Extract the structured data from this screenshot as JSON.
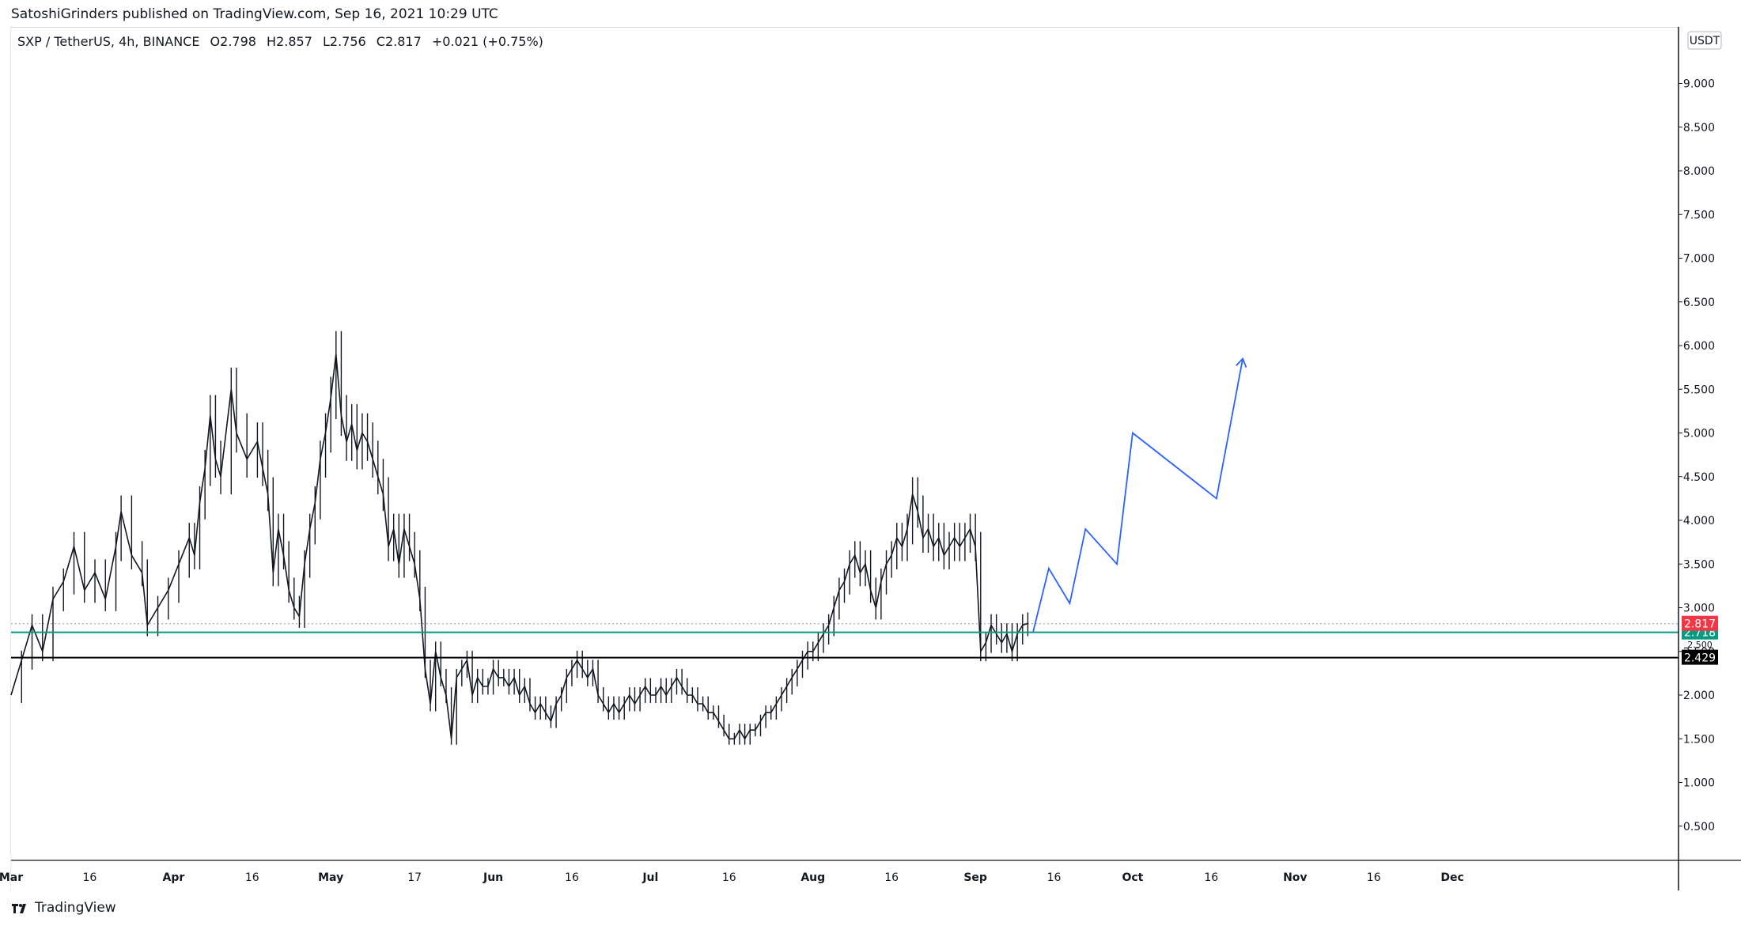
{
  "header": {
    "published_line": "SatoshiGrinders published on TradingView.com, Sep 16, 2021 10:29 UTC"
  },
  "legend": {
    "symbol": "SXP / TetherUS, 4h, BINANCE",
    "open": "O2.798",
    "high": "H2.857",
    "low": "L2.756",
    "close": "C2.817",
    "change": "+0.021 (+0.75%)"
  },
  "footer": {
    "brand": "TradingView"
  },
  "colors": {
    "candle": "#131722",
    "projection": "#2962ff",
    "support_teal": "#089981",
    "support_black": "#000000",
    "last_price": "#f23645",
    "grid_dotted": "#9598a1"
  },
  "chart_data": {
    "type": "line",
    "title": "SXP / TetherUS, 4h, BINANCE",
    "currency": "USDT",
    "ylim": [
      0,
      9.5
    ],
    "y_ticks": [
      "9.000",
      "8.500",
      "8.000",
      "7.500",
      "7.000",
      "6.500",
      "6.000",
      "5.500",
      "5.000",
      "4.500",
      "4.000",
      "3.500",
      "3.000",
      "2.500",
      "2.000",
      "1.500",
      "1.000",
      "0.500"
    ],
    "x_ticks": [
      {
        "label": "Mar",
        "day": 0,
        "month": true
      },
      {
        "label": "16",
        "day": 15,
        "month": false
      },
      {
        "label": "Apr",
        "day": 31,
        "month": true
      },
      {
        "label": "16",
        "day": 46,
        "month": false
      },
      {
        "label": "May",
        "day": 61,
        "month": true
      },
      {
        "label": "17",
        "day": 77,
        "month": false
      },
      {
        "label": "Jun",
        "day": 92,
        "month": true
      },
      {
        "label": "16",
        "day": 107,
        "month": false
      },
      {
        "label": "Jul",
        "day": 122,
        "month": true
      },
      {
        "label": "16",
        "day": 137,
        "month": false
      },
      {
        "label": "Aug",
        "day": 153,
        "month": true
      },
      {
        "label": "16",
        "day": 168,
        "month": false
      },
      {
        "label": "Sep",
        "day": 184,
        "month": true
      },
      {
        "label": "16",
        "day": 199,
        "month": false
      },
      {
        "label": "Oct",
        "day": 214,
        "month": true
      },
      {
        "label": "16",
        "day": 229,
        "month": false
      },
      {
        "label": "Nov",
        "day": 245,
        "month": true
      },
      {
        "label": "16",
        "day": 260,
        "month": false
      },
      {
        "label": "Dec",
        "day": 275,
        "month": true
      }
    ],
    "x_range_days": [
      0,
      318
    ],
    "price_series": {
      "name": "SXP 4h close (approx.)",
      "points": [
        [
          0,
          2.0
        ],
        [
          2,
          2.4
        ],
        [
          4,
          2.8
        ],
        [
          6,
          2.5
        ],
        [
          8,
          3.1
        ],
        [
          10,
          3.3
        ],
        [
          12,
          3.7
        ],
        [
          14,
          3.2
        ],
        [
          16,
          3.4
        ],
        [
          18,
          3.1
        ],
        [
          20,
          3.7
        ],
        [
          21,
          4.1
        ],
        [
          23,
          3.6
        ],
        [
          25,
          3.4
        ],
        [
          26,
          2.8
        ],
        [
          28,
          3.0
        ],
        [
          30,
          3.2
        ],
        [
          32,
          3.5
        ],
        [
          34,
          3.8
        ],
        [
          35,
          3.6
        ],
        [
          36,
          4.2
        ],
        [
          37,
          4.6
        ],
        [
          38,
          5.2
        ],
        [
          39,
          4.7
        ],
        [
          40,
          4.5
        ],
        [
          42,
          5.5
        ],
        [
          43,
          5.0
        ],
        [
          45,
          4.7
        ],
        [
          47,
          4.9
        ],
        [
          48,
          4.6
        ],
        [
          49,
          4.3
        ],
        [
          50,
          3.4
        ],
        [
          51,
          3.9
        ],
        [
          52,
          3.6
        ],
        [
          53,
          3.2
        ],
        [
          54,
          3.0
        ],
        [
          55,
          2.9
        ],
        [
          56,
          3.5
        ],
        [
          57,
          3.9
        ],
        [
          58,
          4.2
        ],
        [
          59,
          4.7
        ],
        [
          60,
          5.0
        ],
        [
          61,
          5.4
        ],
        [
          62,
          5.9
        ],
        [
          63,
          5.2
        ],
        [
          64,
          4.9
        ],
        [
          65,
          5.1
        ],
        [
          66,
          4.8
        ],
        [
          67,
          5.0
        ],
        [
          68,
          4.9
        ],
        [
          69,
          4.7
        ],
        [
          70,
          4.5
        ],
        [
          71,
          4.3
        ],
        [
          72,
          3.7
        ],
        [
          73,
          3.9
        ],
        [
          74,
          3.5
        ],
        [
          75,
          3.9
        ],
        [
          76,
          3.7
        ],
        [
          77,
          3.5
        ],
        [
          78,
          3.1
        ],
        [
          79,
          2.3
        ],
        [
          80,
          1.9
        ],
        [
          81,
          2.5
        ],
        [
          82,
          2.2
        ],
        [
          83,
          2.0
        ],
        [
          84,
          1.5
        ],
        [
          85,
          2.2
        ],
        [
          86,
          2.3
        ],
        [
          87,
          2.4
        ],
        [
          88,
          2.0
        ],
        [
          89,
          2.2
        ],
        [
          90,
          2.1
        ],
        [
          91,
          2.1
        ],
        [
          92,
          2.3
        ],
        [
          93,
          2.2
        ],
        [
          94,
          2.2
        ],
        [
          95,
          2.1
        ],
        [
          96,
          2.2
        ],
        [
          97,
          2.0
        ],
        [
          98,
          2.1
        ],
        [
          99,
          1.9
        ],
        [
          100,
          1.8
        ],
        [
          101,
          1.9
        ],
        [
          102,
          1.8
        ],
        [
          103,
          1.7
        ],
        [
          104,
          1.9
        ],
        [
          105,
          2.0
        ],
        [
          106,
          2.2
        ],
        [
          107,
          2.3
        ],
        [
          108,
          2.4
        ],
        [
          109,
          2.3
        ],
        [
          110,
          2.2
        ],
        [
          111,
          2.3
        ],
        [
          112,
          2.0
        ],
        [
          113,
          1.9
        ],
        [
          114,
          1.8
        ],
        [
          115,
          1.9
        ],
        [
          116,
          1.8
        ],
        [
          117,
          1.9
        ],
        [
          118,
          2.0
        ],
        [
          119,
          1.9
        ],
        [
          120,
          2.0
        ],
        [
          121,
          2.1
        ],
        [
          122,
          2.0
        ],
        [
          123,
          2.0
        ],
        [
          124,
          2.1
        ],
        [
          125,
          2.0
        ],
        [
          126,
          2.1
        ],
        [
          127,
          2.2
        ],
        [
          128,
          2.1
        ],
        [
          129,
          2.0
        ],
        [
          130,
          2.0
        ],
        [
          131,
          1.9
        ],
        [
          132,
          1.9
        ],
        [
          133,
          1.8
        ],
        [
          134,
          1.8
        ],
        [
          135,
          1.7
        ],
        [
          136,
          1.6
        ],
        [
          137,
          1.5
        ],
        [
          138,
          1.5
        ],
        [
          139,
          1.6
        ],
        [
          140,
          1.5
        ],
        [
          141,
          1.6
        ],
        [
          142,
          1.6
        ],
        [
          143,
          1.7
        ],
        [
          144,
          1.8
        ],
        [
          145,
          1.8
        ],
        [
          146,
          1.9
        ],
        [
          147,
          2.0
        ],
        [
          148,
          2.1
        ],
        [
          149,
          2.2
        ],
        [
          150,
          2.3
        ],
        [
          151,
          2.4
        ],
        [
          152,
          2.5
        ],
        [
          153,
          2.5
        ],
        [
          154,
          2.6
        ],
        [
          155,
          2.7
        ],
        [
          156,
          2.8
        ],
        [
          157,
          3.0
        ],
        [
          158,
          3.2
        ],
        [
          159,
          3.3
        ],
        [
          160,
          3.5
        ],
        [
          161,
          3.6
        ],
        [
          162,
          3.4
        ],
        [
          163,
          3.5
        ],
        [
          164,
          3.2
        ],
        [
          165,
          3.0
        ],
        [
          166,
          3.3
        ],
        [
          167,
          3.5
        ],
        [
          168,
          3.6
        ],
        [
          169,
          3.8
        ],
        [
          170,
          3.7
        ],
        [
          171,
          3.9
        ],
        [
          172,
          4.3
        ],
        [
          173,
          4.1
        ],
        [
          174,
          3.8
        ],
        [
          175,
          3.9
        ],
        [
          176,
          3.7
        ],
        [
          177,
          3.8
        ],
        [
          178,
          3.6
        ],
        [
          179,
          3.7
        ],
        [
          180,
          3.8
        ],
        [
          181,
          3.7
        ],
        [
          182,
          3.8
        ],
        [
          183,
          3.9
        ],
        [
          184,
          3.7
        ],
        [
          185,
          2.5
        ],
        [
          186,
          2.6
        ],
        [
          187,
          2.8
        ],
        [
          188,
          2.7
        ],
        [
          189,
          2.6
        ],
        [
          190,
          2.7
        ],
        [
          191,
          2.5
        ],
        [
          192,
          2.7
        ],
        [
          193,
          2.8
        ],
        [
          194,
          2.82
        ]
      ]
    },
    "support_levels": [
      {
        "name": "teal support",
        "value": 2.718,
        "label": "2.718"
      },
      {
        "name": "black support",
        "value": 2.429,
        "label": "2.429"
      }
    ],
    "last_price": {
      "value": 2.817,
      "label": "2.817"
    },
    "hidden_label": "2.500",
    "projection": {
      "name": "projected path",
      "points": [
        [
          195,
          2.72
        ],
        [
          198,
          3.45
        ],
        [
          202,
          3.05
        ],
        [
          205,
          3.9
        ],
        [
          211,
          3.5
        ],
        [
          214,
          5.0
        ],
        [
          230,
          4.25
        ],
        [
          235,
          5.85
        ]
      ]
    }
  }
}
